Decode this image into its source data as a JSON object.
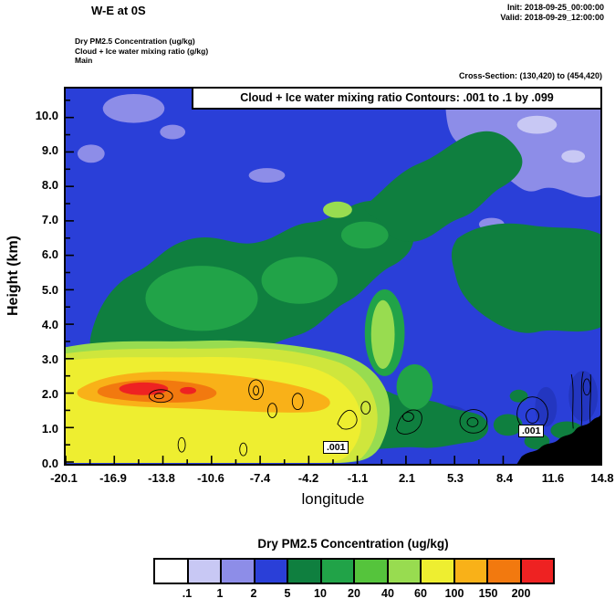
{
  "header": {
    "title": "W-E at 0S",
    "init": "Init: 2018-09-25_00:00:00",
    "valid": "Valid: 2018-09-29_12:00:00",
    "field_pm25": "Dry PM2.5 Concentration   (ug/kg)",
    "field_cloud": "Cloud + Ice water mixing ratio   (g/kg)",
    "domain": "Main",
    "cross_section": "Cross-Section: (130,420) to (454,420)"
  },
  "chart_data": {
    "type": "heatmap",
    "title": "Cloud + Ice water mixing ratio Contours: .001 to .1 by .099",
    "xlabel": "longitude",
    "ylabel": "Height (km)",
    "x_ticks": [
      "-20.1",
      "-16.9",
      "-13.8",
      "-10.6",
      "-7.4",
      "-4.2",
      "-1.1",
      "2.1",
      "5.3",
      "8.4",
      "11.6",
      "14.8"
    ],
    "y_ticks": [
      "0.0",
      "1.0",
      "2.0",
      "3.0",
      "4.0",
      "5.0",
      "6.0",
      "7.0",
      "8.0",
      "9.0",
      "10.0"
    ],
    "x_range": [
      -20.1,
      14.8
    ],
    "y_range_km": [
      0,
      10.8
    ],
    "fill_field": "Dry PM2.5 Concentration (ug/kg)",
    "contour_field": "Cloud + Ice water mixing ratio (g/kg)",
    "contour_levels": ".001 to .1 by .099",
    "contour_label": ".001",
    "features": {
      "plume": "High PM2.5 plume (40 to >200 ug/kg; yellow-orange-red) below ~3 km from lon -20.1 to about -4, orange band near 2 km, red core ~200 ug/kg near lon -16 to -14 at ~2.2 km",
      "background": "Blue (2-5 ug/kg) aloft with periwinkle (1-2 ug/kg) patches at top corners; dark/medium greens (5-40 ug/kg) at mid-levels and low levels right of the plume",
      "terrain": "Black terrain silhouette rising to ~1.3 km at the right edge (lon ~11 to 14.8)",
      "contours": "Thin black .001 g/kg cloud+ice contour loops scattered between 0.5 and 2.5 km"
    },
    "colorbar": {
      "title": "Dry PM2.5 Concentration  (ug/kg)",
      "tick_labels": [
        ".1",
        "1",
        "2",
        "5",
        "10",
        "20",
        "40",
        "60",
        "100",
        "150",
        "200"
      ],
      "colors": [
        "#ffffff",
        "#c8c8f4",
        "#8d8de8",
        "#2a3fd8",
        "#0f7f3f",
        "#21a348",
        "#55c43c",
        "#98dc50",
        "#eeee30",
        "#f9b118",
        "#f2790f",
        "#ee2222"
      ]
    }
  }
}
